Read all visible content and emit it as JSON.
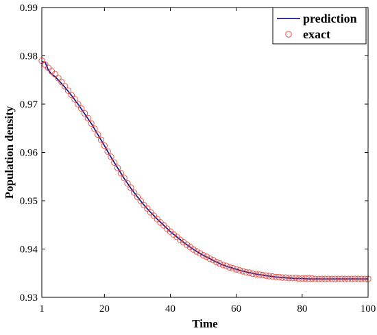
{
  "chart_data": {
    "type": "line",
    "xlabel": "Time",
    "ylabel": "Population density",
    "xlim": [
      1,
      100
    ],
    "ylim": [
      0.93,
      0.99
    ],
    "xticks": [
      1,
      20,
      40,
      60,
      80,
      100
    ],
    "xtick_labels": [
      "1",
      "20",
      "40",
      "60",
      "80",
      "100"
    ],
    "yticks": [
      0.93,
      0.94,
      0.95,
      0.96,
      0.97,
      0.98,
      0.99
    ],
    "ytick_labels": [
      "0.93",
      "0.94",
      "0.95",
      "0.96",
      "0.97",
      "0.98",
      "0.99"
    ],
    "grid": false,
    "legend_position": "top-right",
    "series": [
      {
        "name": "prediction",
        "style": "line",
        "color": "#1a1a8c",
        "x": [
          1,
          2,
          3,
          4,
          5,
          6,
          8,
          10,
          12,
          14,
          16,
          18,
          20,
          22,
          24,
          26,
          28,
          30,
          32,
          34,
          36,
          38,
          40,
          42,
          44,
          46,
          48,
          50,
          52,
          54,
          56,
          58,
          60,
          62,
          64,
          66,
          68,
          70,
          72,
          74,
          76,
          78,
          80,
          82,
          84,
          86,
          88,
          90,
          92,
          94,
          96,
          98,
          100
        ],
        "y": [
          0.9788,
          0.9787,
          0.977,
          0.9762,
          0.9757,
          0.975,
          0.9735,
          0.9718,
          0.97,
          0.968,
          0.966,
          0.9637,
          0.9614,
          0.959,
          0.9568,
          0.9546,
          0.9526,
          0.9508,
          0.9491,
          0.9476,
          0.9462,
          0.9449,
          0.9436,
          0.9425,
          0.9414,
          0.9404,
          0.9395,
          0.9387,
          0.938,
          0.9373,
          0.9367,
          0.9362,
          0.9358,
          0.9354,
          0.9351,
          0.9348,
          0.9346,
          0.9344,
          0.9342,
          0.9341,
          0.934,
          0.9339,
          0.9339,
          0.9338,
          0.9338,
          0.9338,
          0.9338,
          0.9338,
          0.9338,
          0.9338,
          0.9338,
          0.9338,
          0.9338
        ]
      },
      {
        "name": "exact",
        "style": "markers",
        "marker": "circle",
        "color": "#e8473e",
        "x": [
          1,
          2,
          3,
          4,
          5,
          6,
          7,
          8,
          9,
          10,
          11,
          12,
          13,
          14,
          15,
          16,
          17,
          18,
          19,
          20,
          21,
          22,
          23,
          24,
          25,
          26,
          27,
          28,
          29,
          30,
          31,
          32,
          33,
          34,
          35,
          36,
          37,
          38,
          39,
          40,
          41,
          42,
          43,
          44,
          45,
          46,
          47,
          48,
          49,
          50,
          51,
          52,
          53,
          54,
          55,
          56,
          57,
          58,
          59,
          60,
          61,
          62,
          63,
          64,
          65,
          66,
          67,
          68,
          69,
          70,
          71,
          72,
          73,
          74,
          75,
          76,
          77,
          78,
          79,
          80,
          81,
          82,
          83,
          84,
          85,
          86,
          87,
          88,
          89,
          90,
          91,
          92,
          93,
          94,
          95,
          96,
          97,
          98,
          99,
          100
        ],
        "y": [
          0.979,
          0.9782,
          0.9775,
          0.9768,
          0.9762,
          0.9754,
          0.9746,
          0.9737,
          0.9728,
          0.9719,
          0.971,
          0.97,
          0.9691,
          0.9681,
          0.9671,
          0.966,
          0.9649,
          0.9637,
          0.9626,
          0.9614,
          0.9602,
          0.9591,
          0.9579,
          0.9568,
          0.9557,
          0.9547,
          0.9536,
          0.9527,
          0.9517,
          0.9508,
          0.95,
          0.9491,
          0.9484,
          0.9476,
          0.9469,
          0.9462,
          0.9455,
          0.9449,
          0.9442,
          0.9436,
          0.943,
          0.9425,
          0.9419,
          0.9414,
          0.9409,
          0.9404,
          0.9399,
          0.9395,
          0.9391,
          0.9387,
          0.9384,
          0.938,
          0.9377,
          0.9373,
          0.937,
          0.9367,
          0.9365,
          0.9362,
          0.936,
          0.9358,
          0.9356,
          0.9354,
          0.9352,
          0.9351,
          0.9349,
          0.9348,
          0.9347,
          0.9346,
          0.9345,
          0.9344,
          0.9343,
          0.9342,
          0.9342,
          0.9341,
          0.9341,
          0.934,
          0.934,
          0.934,
          0.9339,
          0.9339,
          0.9339,
          0.9339,
          0.9339,
          0.9338,
          0.9338,
          0.9338,
          0.9338,
          0.9338,
          0.9338,
          0.9338,
          0.9338,
          0.9338,
          0.9338,
          0.9338,
          0.9338,
          0.9338,
          0.9338,
          0.9338,
          0.9338,
          0.9338
        ]
      }
    ]
  }
}
